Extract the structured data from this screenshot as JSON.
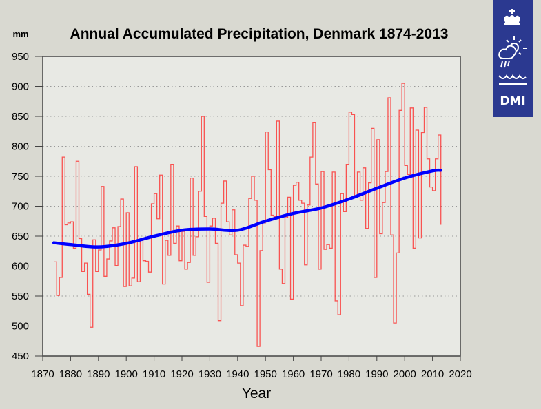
{
  "chart_data": {
    "type": "line",
    "title": "Annual Accumulated Precipitation, Denmark 1874-2013",
    "ylabel": "mm",
    "xlabel": "Year",
    "xlim": [
      1870,
      2020
    ],
    "ylim": [
      450,
      950
    ],
    "xticks": [
      1870,
      1880,
      1890,
      1900,
      1910,
      1920,
      1930,
      1940,
      1950,
      1960,
      1970,
      1980,
      1990,
      2000,
      2010,
      2020
    ],
    "yticks": [
      450,
      500,
      550,
      600,
      650,
      700,
      750,
      800,
      850,
      900,
      950
    ],
    "grid": "horizontal dotted",
    "series": [
      {
        "style": "step",
        "color": "#ff2020",
        "x_start": 1874,
        "values": [
          607,
          551,
          581,
          782,
          669,
          672,
          674,
          630,
          775,
          646,
          591,
          605,
          553,
          498,
          644,
          591,
          627,
          733,
          583,
          612,
          642,
          664,
          601,
          666,
          712,
          566,
          689,
          567,
          580,
          766,
          574,
          643,
          609,
          608,
          590,
          704,
          721,
          679,
          752,
          570,
          643,
          618,
          770,
          638,
          667,
          609,
          658,
          595,
          606,
          747,
          618,
          649,
          725,
          850,
          683,
          573,
          667,
          680,
          638,
          509,
          705,
          742,
          674,
          652,
          694,
          619,
          605,
          534,
          635,
          633,
          713,
          750,
          710,
          466,
          626,
          672,
          824,
          761,
          685,
          683,
          842,
          595,
          571,
          681,
          715,
          545,
          735,
          740,
          710,
          705,
          602,
          702,
          782,
          840,
          737,
          595,
          758,
          628,
          636,
          630,
          757,
          542,
          519,
          721,
          691,
          770,
          857,
          853,
          718,
          757,
          710,
          764,
          663,
          739,
          830,
          581,
          811,
          654,
          706,
          758,
          881,
          652,
          505,
          622,
          860,
          905,
          768,
          753,
          864,
          630,
          827,
          647,
          823,
          865,
          779,
          732,
          726,
          779,
          819,
          669
        ]
      },
      {
        "style": "smooth",
        "color": "#0000ff",
        "x": [
          1874,
          1880,
          1890,
          1900,
          1910,
          1920,
          1930,
          1940,
          1950,
          1960,
          1970,
          1980,
          1990,
          2000,
          2010,
          2013
        ],
        "values": [
          639,
          636,
          632,
          638,
          650,
          660,
          662,
          660,
          675,
          688,
          697,
          712,
          730,
          747,
          759,
          760
        ]
      }
    ]
  },
  "logo": {
    "text": "DMI",
    "color": "#2b3990"
  },
  "colors": {
    "background": "#d9d9d1",
    "plot_background": "#e8e9e4"
  }
}
